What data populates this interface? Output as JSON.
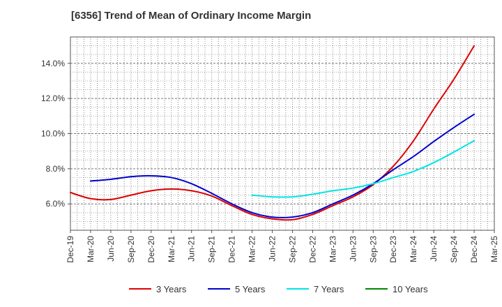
{
  "chart_data": {
    "type": "line",
    "title": "[6356]  Trend of Mean of Ordinary Income Margin",
    "xlabel": "",
    "ylabel": "",
    "x": [
      "Dec-19",
      "Mar-20",
      "Jun-20",
      "Sep-20",
      "Dec-20",
      "Mar-21",
      "Jun-21",
      "Sep-21",
      "Dec-21",
      "Mar-22",
      "Jun-22",
      "Sep-22",
      "Dec-22",
      "Mar-23",
      "Jun-23",
      "Sep-23",
      "Dec-23",
      "Mar-24",
      "Jun-24",
      "Sep-24",
      "Dec-24",
      "Mar-25"
    ],
    "ylim": [
      4.5,
      15.5
    ],
    "yticks": [
      6.0,
      8.0,
      10.0,
      12.0,
      14.0
    ],
    "ytick_labels": [
      "6.0%",
      "8.0%",
      "10.0%",
      "12.0%",
      "14.0%"
    ],
    "grid": true,
    "legend_position": "bottom",
    "series": [
      {
        "name": "3 Years",
        "color": "#dd0000",
        "values": [
          6.65,
          6.3,
          6.25,
          6.5,
          6.75,
          6.85,
          6.75,
          6.45,
          5.9,
          5.4,
          5.15,
          5.1,
          5.4,
          5.9,
          6.4,
          7.1,
          8.15,
          9.6,
          11.4,
          13.1,
          15.0,
          null
        ]
      },
      {
        "name": "5 Years",
        "color": "#0000cc",
        "values": [
          null,
          7.3,
          7.4,
          7.55,
          7.6,
          7.5,
          7.15,
          6.6,
          6.0,
          5.5,
          5.25,
          5.25,
          5.5,
          6.0,
          6.5,
          7.15,
          7.95,
          8.7,
          9.55,
          10.35,
          11.1,
          null
        ]
      },
      {
        "name": "7 Years",
        "color": "#00e5e5",
        "values": [
          null,
          null,
          null,
          null,
          null,
          null,
          null,
          null,
          null,
          6.5,
          6.4,
          6.4,
          6.55,
          6.75,
          6.9,
          7.15,
          7.5,
          7.85,
          8.35,
          8.95,
          9.6,
          null
        ]
      },
      {
        "name": "10 Years",
        "color": "#008800",
        "values": [
          null,
          null,
          null,
          null,
          null,
          null,
          null,
          null,
          null,
          null,
          null,
          null,
          null,
          null,
          null,
          null,
          null,
          null,
          null,
          null,
          null,
          null
        ]
      }
    ]
  }
}
